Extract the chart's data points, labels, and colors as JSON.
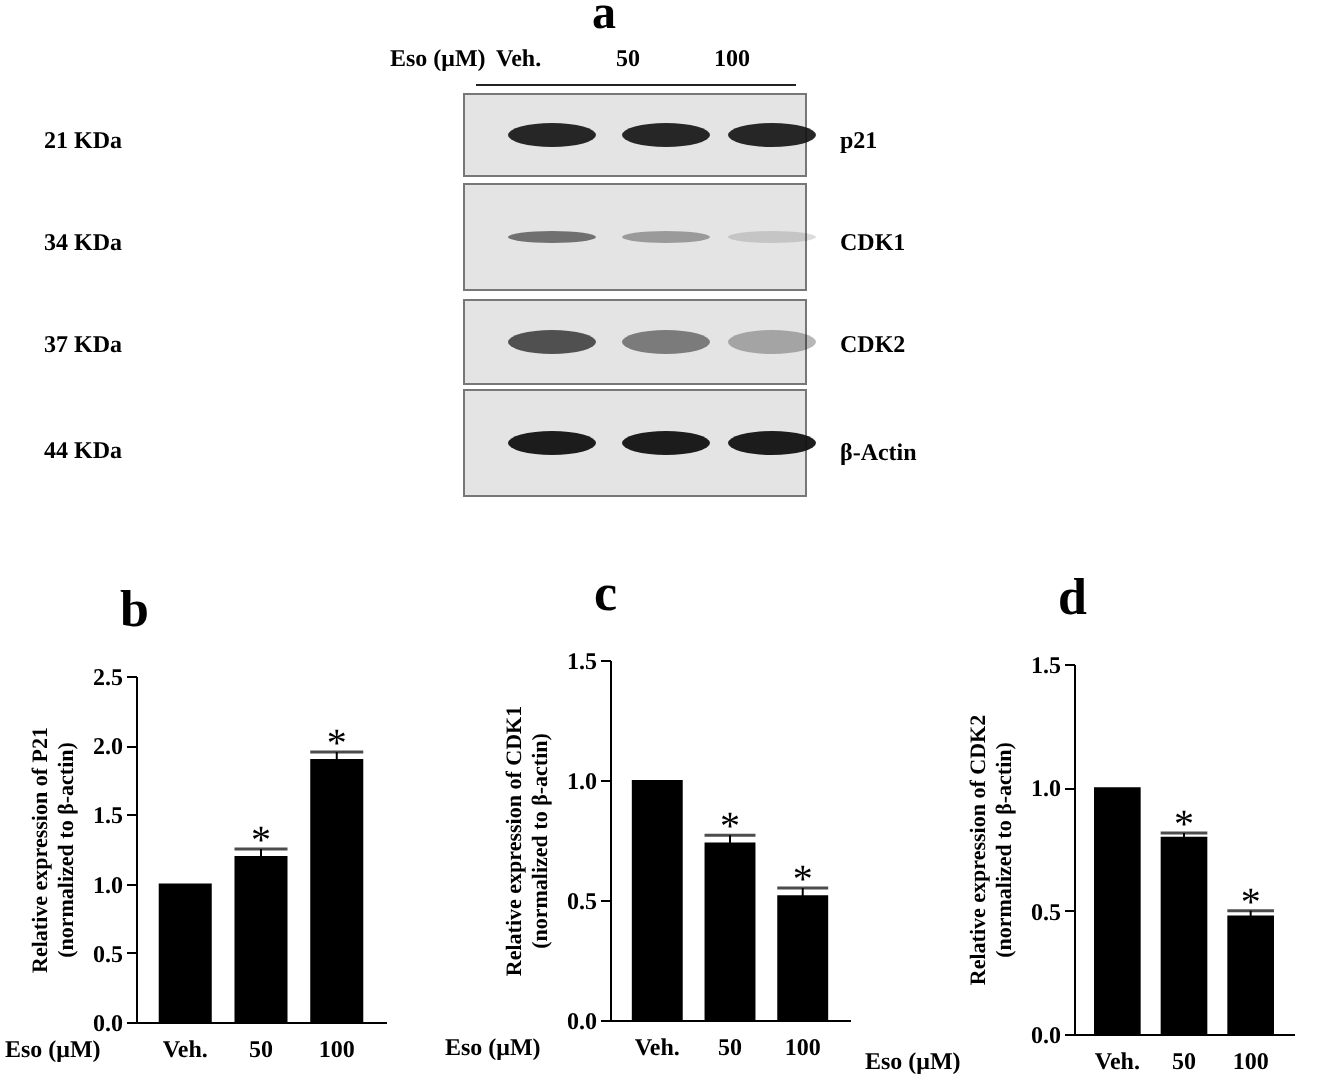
{
  "chart_data": [
    {
      "type": "other",
      "title": "a",
      "annotations": [
        "Eso (μM)",
        "Veh.",
        "50",
        "100",
        "21 KDa",
        "34 KDa",
        "37  KDa",
        "44 KDa",
        "p21",
        "CDK1",
        "CDK2",
        "β-Actin"
      ]
    },
    {
      "type": "bar",
      "title": "b",
      "categories": [
        "Veh.",
        "50",
        "100"
      ],
      "values": [
        1.0,
        1.2,
        1.9
      ],
      "errors": [
        null,
        0.05,
        0.05
      ],
      "color": "#000000",
      "xlabel": "Eso (μM)",
      "ylabel": "Relative expression of P21\n(normalized to β-actin)",
      "ylim": [
        0,
        2.5
      ],
      "yticks": [
        {
          "value": 0,
          "label": "0.0"
        },
        {
          "value": 0.5,
          "label": "0.5"
        },
        {
          "value": 1,
          "label": "1.0"
        },
        {
          "value": 1.5,
          "label": "1.5"
        },
        {
          "value": 2,
          "label": "2.0"
        },
        {
          "value": 2.5,
          "label": "2.5"
        }
      ],
      "annotations": [
        {
          "text": "*",
          "x": "50",
          "y": 1.25
        },
        {
          "text": "*",
          "x": "100",
          "y": 1.95
        }
      ]
    },
    {
      "type": "bar",
      "title": "c",
      "categories": [
        "Veh.",
        "50",
        "100"
      ],
      "values": [
        1.0,
        0.74,
        0.52
      ],
      "errors": [
        null,
        0.03,
        0.03
      ],
      "color": "#000000",
      "xlabel": "Eso (μM)",
      "ylabel": "Relative expression of CDK1\n(normalized to β-actin)",
      "ylim": [
        0,
        1.5
      ],
      "yticks": [
        {
          "value": 0,
          "label": "0.0"
        },
        {
          "value": 0.5,
          "label": "0.5"
        },
        {
          "value": 1,
          "label": "1.0"
        },
        {
          "value": 1.5,
          "label": "1.5"
        }
      ],
      "annotations": [
        {
          "text": "*",
          "x": "50",
          "y": 0.77
        },
        {
          "text": "*",
          "x": "100",
          "y": 0.55
        }
      ]
    },
    {
      "type": "bar",
      "title": "d",
      "categories": [
        "Veh.",
        "50",
        "100"
      ],
      "values": [
        1.0,
        0.8,
        0.48
      ],
      "errors": [
        null,
        0.015,
        0.02
      ],
      "color": "#000000",
      "xlabel": "Eso (μM)",
      "ylabel": "Relative expression of CDK2\n(normalized to β-actin)",
      "ylim": [
        0,
        1.5
      ],
      "yticks": [
        {
          "value": 0,
          "label": "0.0"
        },
        {
          "value": 0.5,
          "label": "0.5"
        },
        {
          "value": 1,
          "label": "1.0"
        },
        {
          "value": 1.5,
          "label": "1.5"
        }
      ],
      "annotations": [
        {
          "text": "*",
          "x": "50",
          "y": 0.815
        },
        {
          "text": "*",
          "x": "100",
          "y": 0.5
        }
      ]
    }
  ]
}
